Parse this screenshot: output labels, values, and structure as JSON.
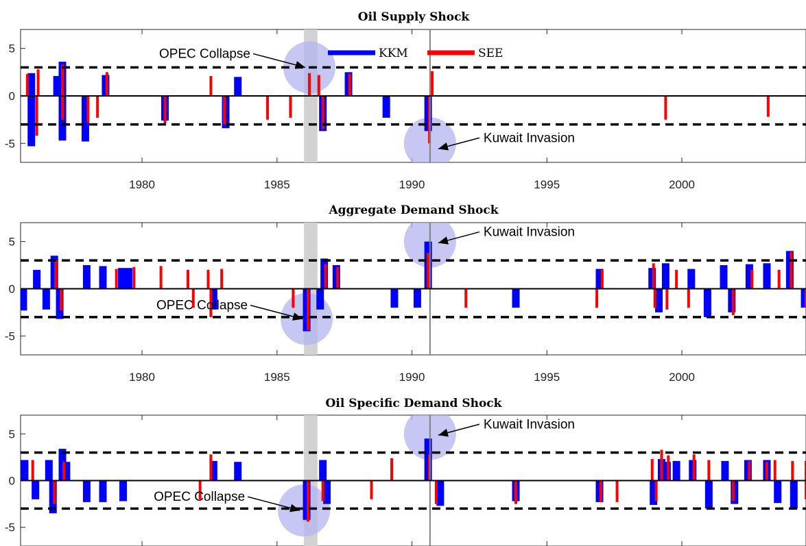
{
  "colors": {
    "kkm": "#0000ff",
    "see": "#ff0000",
    "highlight_ellipse": "#b4b4f0",
    "shading": "#d2d2d2",
    "threshold_line": "#000000",
    "vline": "#808080"
  },
  "legend": {
    "kkm": "KKM",
    "see": "SEE",
    "placement": "top-center (inside first panel)"
  },
  "annotations": {
    "opec": "OPEC Collapse",
    "kuwait": "Kuwait Invasion"
  },
  "chart_data": [
    {
      "type": "bar",
      "title": "Oil Supply Shock",
      "xlabel": "",
      "ylabel": "",
      "xlim": [
        1975.5,
        2004.6
      ],
      "ylim": [
        -7,
        7
      ],
      "xticks": [
        1980,
        1985,
        1990,
        1995,
        2000
      ],
      "yticks": [
        5,
        0,
        -5
      ],
      "threshold": [
        3,
        -3
      ],
      "shaded_region": [
        1986.0,
        1986.5
      ],
      "vline": 1990.67,
      "highlights": [
        {
          "label": "OPEC Collapse",
          "x": 1986.2,
          "y": 3.0,
          "label_side": "left"
        },
        {
          "label": "Kuwait Invasion",
          "x": 1990.67,
          "y": -5.0,
          "label_side": "right"
        }
      ],
      "series": [
        {
          "name": "KKM",
          "points": [
            [
              1975.9,
              2.4
            ],
            [
              1975.9,
              -5.3
            ],
            [
              1976.85,
              2.1
            ],
            [
              1977.05,
              3.6
            ],
            [
              1977.05,
              -4.7
            ],
            [
              1977.9,
              -4.8
            ],
            [
              1978.65,
              2.2
            ],
            [
              1980.85,
              -2.6
            ],
            [
              1983.1,
              -3.4
            ],
            [
              1983.55,
              2.0
            ],
            [
              1986.7,
              -3.7
            ],
            [
              1987.65,
              2.5
            ],
            [
              1989.05,
              -2.3
            ],
            [
              1990.6,
              -3.7
            ]
          ]
        },
        {
          "name": "SEE",
          "points": [
            [
              1975.75,
              2.3
            ],
            [
              1976.1,
              -4.2
            ],
            [
              1976.15,
              2.8
            ],
            [
              1977.05,
              3.3
            ],
            [
              1977.05,
              -2.5
            ],
            [
              1978.0,
              -2.8
            ],
            [
              1978.35,
              -2.3
            ],
            [
              1978.7,
              2.5
            ],
            [
              1980.85,
              -2.9
            ],
            [
              1982.55,
              2.1
            ],
            [
              1983.05,
              -3.0
            ],
            [
              1984.65,
              -2.5
            ],
            [
              1985.5,
              -2.3
            ],
            [
              1986.2,
              2.4
            ],
            [
              1986.55,
              2.2
            ],
            [
              1986.7,
              -3.5
            ],
            [
              1987.7,
              2.3
            ],
            [
              1990.65,
              -5.0
            ],
            [
              1990.75,
              2.6
            ],
            [
              1999.4,
              -2.5
            ],
            [
              2003.2,
              -2.2
            ]
          ]
        }
      ]
    },
    {
      "type": "bar",
      "title": "Aggregate Demand Shock",
      "xlabel": "",
      "ylabel": "",
      "xlim": [
        1975.5,
        2004.6
      ],
      "ylim": [
        -7,
        7
      ],
      "xticks": [
        1980,
        1985,
        1990,
        1995,
        2000
      ],
      "yticks": [
        5,
        0,
        -5
      ],
      "threshold": [
        3,
        -3
      ],
      "shaded_region": [
        1986.0,
        1986.5
      ],
      "vline": 1990.67,
      "highlights": [
        {
          "label": "OPEC Collapse",
          "x": 1986.1,
          "y": -3.2,
          "label_side": "left"
        },
        {
          "label": "Kuwait Invasion",
          "x": 1990.67,
          "y": 5.0,
          "label_side": "right"
        }
      ],
      "series": [
        {
          "name": "KKM",
          "points": [
            [
              1975.6,
              -2.3
            ],
            [
              1976.1,
              2.0
            ],
            [
              1976.45,
              -2.2
            ],
            [
              1976.75,
              3.5
            ],
            [
              1976.95,
              -3.2
            ],
            [
              1977.95,
              2.5
            ],
            [
              1978.55,
              2.4
            ],
            [
              1979.25,
              2.2
            ],
            [
              1979.5,
              2.2
            ],
            [
              1982.65,
              -2.2
            ],
            [
              1986.1,
              -4.5
            ],
            [
              1986.6,
              -2.2
            ],
            [
              1986.75,
              3.2
            ],
            [
              1987.2,
              2.5
            ],
            [
              1989.35,
              -2.0
            ],
            [
              1990.2,
              -2.0
            ],
            [
              1990.6,
              5.0
            ],
            [
              1993.85,
              -2.0
            ],
            [
              1996.95,
              2.1
            ],
            [
              1998.9,
              2.2
            ],
            [
              1999.15,
              -2.5
            ],
            [
              1999.4,
              2.7
            ],
            [
              2000.35,
              2.1
            ],
            [
              2000.95,
              -3.0
            ],
            [
              2001.55,
              2.5
            ],
            [
              2001.85,
              -2.5
            ],
            [
              2002.5,
              2.6
            ],
            [
              2003.15,
              2.7
            ],
            [
              2004.0,
              4.0
            ],
            [
              2004.55,
              -2.0
            ]
          ]
        },
        {
          "name": "SEE",
          "points": [
            [
              1976.8,
              3.0
            ],
            [
              1977.0,
              -2.3
            ],
            [
              1979.05,
              2.1
            ],
            [
              1979.7,
              2.3
            ],
            [
              1980.7,
              2.4
            ],
            [
              1981.7,
              2.0
            ],
            [
              1981.9,
              -2.0
            ],
            [
              1982.45,
              2.0
            ],
            [
              1982.55,
              -3.0
            ],
            [
              1982.95,
              2.1
            ],
            [
              1985.6,
              -2.0
            ],
            [
              1986.15,
              -4.4
            ],
            [
              1986.8,
              2.6
            ],
            [
              1987.25,
              2.3
            ],
            [
              1990.6,
              3.8
            ],
            [
              1992.0,
              -2.0
            ],
            [
              1996.85,
              -2.0
            ],
            [
              1997.05,
              2.0
            ],
            [
              1998.95,
              2.7
            ],
            [
              1999.0,
              -2.0
            ],
            [
              1999.45,
              -2.2
            ],
            [
              1999.8,
              2.0
            ],
            [
              2000.25,
              -2.0
            ],
            [
              2001.9,
              -2.8
            ],
            [
              2002.6,
              2.0
            ],
            [
              2003.6,
              2.0
            ],
            [
              2004.05,
              3.9
            ],
            [
              2004.6,
              -2.0
            ]
          ]
        }
      ]
    },
    {
      "type": "bar",
      "title": "Oil Specific Demand Shock",
      "xlabel": "",
      "ylabel": "",
      "xlim": [
        1975.5,
        2004.6
      ],
      "ylim": [
        -7,
        7
      ],
      "xticks": [
        1980,
        1985,
        1990,
        1995,
        2000
      ],
      "yticks": [
        5,
        0,
        -5
      ],
      "threshold": [
        3,
        -3
      ],
      "shaded_region": [
        1986.0,
        1986.5
      ],
      "vline": 1990.67,
      "highlights": [
        {
          "label": "OPEC Collapse",
          "x": 1986.0,
          "y": -3.2,
          "label_side": "left"
        },
        {
          "label": "Kuwait Invasion",
          "x": 1990.67,
          "y": 5.0,
          "label_side": "right"
        }
      ],
      "series": [
        {
          "name": "KKM",
          "points": [
            [
              1975.65,
              2.2
            ],
            [
              1976.05,
              -2.0
            ],
            [
              1976.55,
              2.2
            ],
            [
              1976.7,
              -3.5
            ],
            [
              1977.05,
              3.4
            ],
            [
              1977.2,
              2.0
            ],
            [
              1977.95,
              -2.3
            ],
            [
              1978.55,
              -2.3
            ],
            [
              1979.3,
              -2.2
            ],
            [
              1982.65,
              2.1
            ],
            [
              1983.55,
              2.0
            ],
            [
              1986.1,
              -4.2
            ],
            [
              1986.7,
              2.2
            ],
            [
              1986.85,
              -2.5
            ],
            [
              1990.6,
              4.5
            ],
            [
              1991.05,
              -2.7
            ],
            [
              1993.85,
              -2.2
            ],
            [
              1996.95,
              -2.3
            ],
            [
              1998.95,
              -2.6
            ],
            [
              1999.25,
              2.3
            ],
            [
              1999.45,
              2.0
            ],
            [
              1999.8,
              2.1
            ],
            [
              2000.4,
              2.2
            ],
            [
              2001.0,
              -3.0
            ],
            [
              2001.6,
              2.1
            ],
            [
              2001.95,
              -2.5
            ],
            [
              2002.45,
              2.2
            ],
            [
              2003.15,
              2.2
            ],
            [
              2003.55,
              -2.4
            ],
            [
              2004.15,
              -3.0
            ]
          ]
        },
        {
          "name": "SEE",
          "points": [
            [
              1975.95,
              2.2
            ],
            [
              1976.75,
              -2.5
            ],
            [
              1977.1,
              2.0
            ],
            [
              1982.15,
              -2.0
            ],
            [
              1982.55,
              2.8
            ],
            [
              1986.15,
              -4.4
            ],
            [
              1986.7,
              -2.2
            ],
            [
              1988.5,
              -2.0
            ],
            [
              1989.25,
              2.4
            ],
            [
              1990.65,
              2.8
            ],
            [
              1990.9,
              -2.5
            ],
            [
              1993.85,
              -2.5
            ],
            [
              1997.0,
              -2.3
            ],
            [
              1997.6,
              -2.3
            ],
            [
              1998.9,
              2.3
            ],
            [
              1999.05,
              -2.2
            ],
            [
              1999.25,
              3.3
            ],
            [
              1999.5,
              2.7
            ],
            [
              2000.45,
              2.8
            ],
            [
              2001.0,
              2.2
            ],
            [
              2001.9,
              -2.2
            ],
            [
              2002.5,
              2.1
            ],
            [
              2003.15,
              2.0
            ],
            [
              2003.45,
              2.2
            ],
            [
              2004.1,
              2.1
            ],
            [
              2004.6,
              2.1
            ],
            [
              2004.6,
              -2.0
            ]
          ]
        }
      ]
    }
  ]
}
